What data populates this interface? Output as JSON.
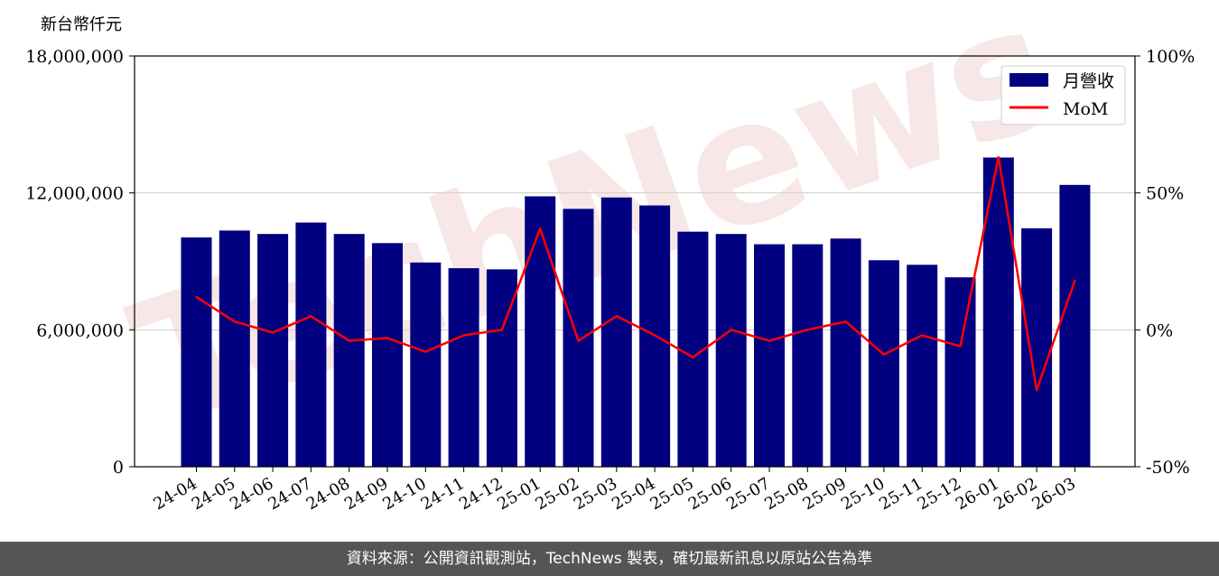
{
  "chart_data": {
    "type": "bar",
    "y_unit_label": "新台幣仟元",
    "categories": [
      "24-04",
      "24-05",
      "24-06",
      "24-07",
      "24-08",
      "24-09",
      "24-10",
      "24-11",
      "24-12",
      "25-01",
      "25-02",
      "25-03",
      "25-04",
      "25-05",
      "25-06",
      "25-07",
      "25-08",
      "25-09",
      "25-10",
      "25-11",
      "25-12",
      "26-01",
      "26-02",
      "26-03"
    ],
    "series": [
      {
        "name": "月營收",
        "kind": "bar",
        "axis": "left",
        "color": "#000080",
        "values": [
          10050000,
          10350000,
          10200000,
          10700000,
          10200000,
          9800000,
          8950000,
          8700000,
          8650000,
          11850000,
          11300000,
          11800000,
          11450000,
          10300000,
          10200000,
          9750000,
          9750000,
          10000000,
          9050000,
          8850000,
          8300000,
          13550000,
          10450000,
          12350000
        ]
      },
      {
        "name": "MoM",
        "kind": "line",
        "axis": "right",
        "color": "#ff0000",
        "values": [
          12,
          3,
          -1,
          5,
          -4,
          -3,
          -8,
          -2,
          0,
          37,
          -4,
          5,
          -2,
          -10,
          0,
          -4,
          0,
          3,
          -9,
          -2,
          -6,
          63,
          -22,
          18
        ]
      }
    ],
    "left_axis": {
      "ylim": [
        0,
        18000000
      ],
      "ticks": [
        "0",
        "6,000,000",
        "12,000,000",
        "18,000,000"
      ]
    },
    "right_axis": {
      "ylim": [
        -50,
        100
      ],
      "ticks": [
        "-50%",
        "0%",
        "50%",
        "100%"
      ]
    },
    "grid": "horizontal",
    "legend_position": "top-right",
    "watermark": "TechNews"
  },
  "footer": {
    "source_text": "資料來源：公開資訊觀測站，TechNews 製表，確切最新訊息以原站公告為準"
  }
}
